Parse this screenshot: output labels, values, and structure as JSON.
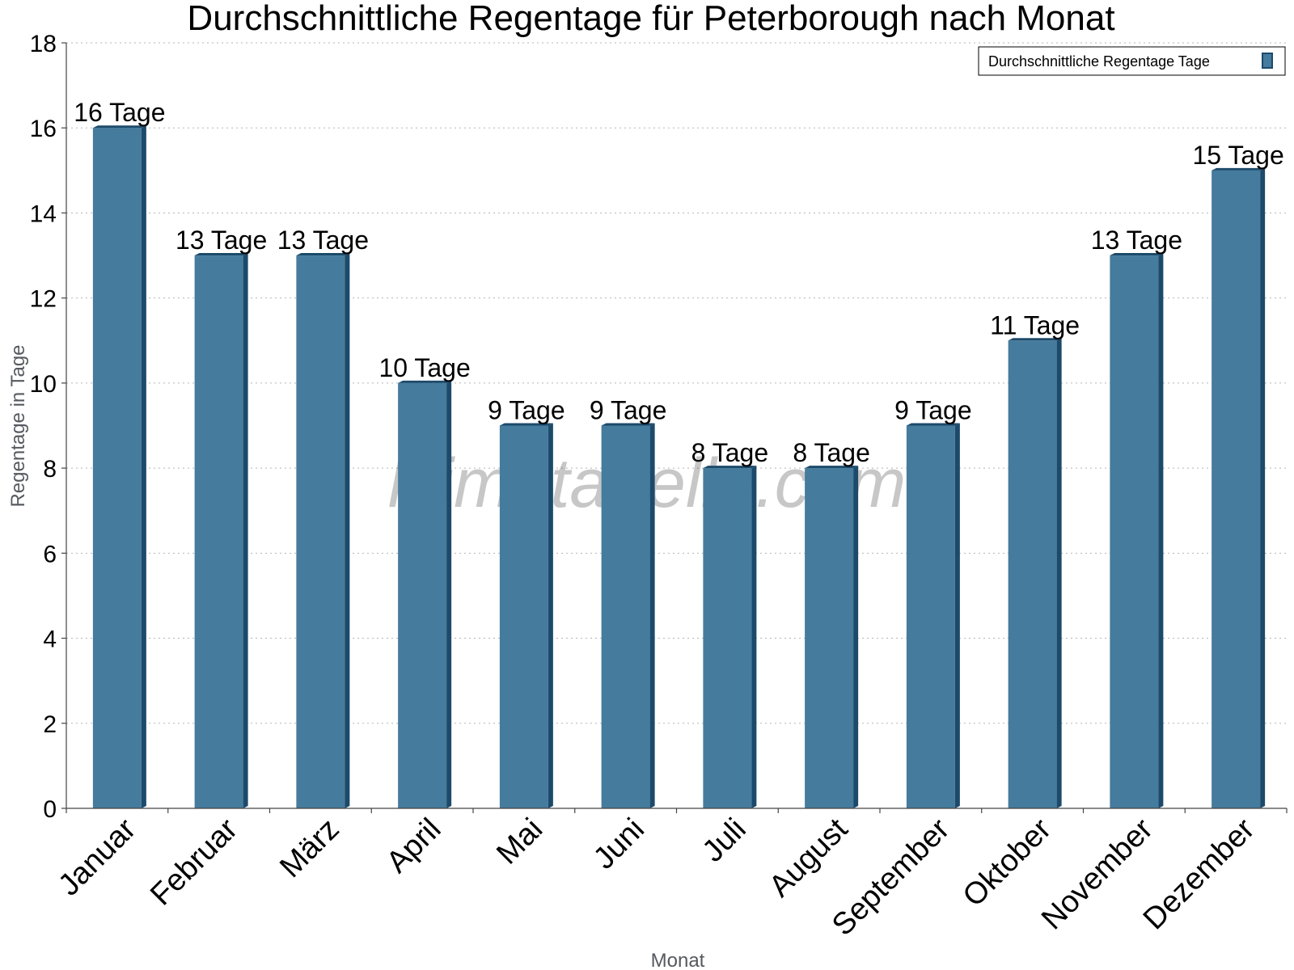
{
  "chart_data": {
    "type": "bar",
    "title": "Durchschnittliche Regentage für Peterborough nach Monat",
    "xlabel": "Monat",
    "ylabel": "Regentage in Tage",
    "ylim": [
      0,
      18
    ],
    "yticks": [
      0,
      2,
      4,
      6,
      8,
      10,
      12,
      14,
      16,
      18
    ],
    "grid": true,
    "legend_position": "top-right",
    "categories": [
      "Januar",
      "Februar",
      "März",
      "April",
      "Mai",
      "Juni",
      "Juli",
      "August",
      "September",
      "Oktober",
      "November",
      "Dezember"
    ],
    "series": [
      {
        "name": "Durchschnittliche Regentage Tage",
        "values": [
          16,
          13,
          13,
          10,
          9,
          9,
          8,
          8,
          9,
          11,
          13,
          15
        ],
        "labels": [
          "16 Tage",
          "13 Tage",
          "13 Tage",
          "10 Tage",
          "9 Tage",
          "9 Tage",
          "8 Tage",
          "8 Tage",
          "9 Tage",
          "11 Tage",
          "13 Tage",
          "15 Tage"
        ],
        "color": "#457b9d",
        "edge_color": "#1c4a6b"
      }
    ],
    "watermark": "klimatabelle.com"
  }
}
